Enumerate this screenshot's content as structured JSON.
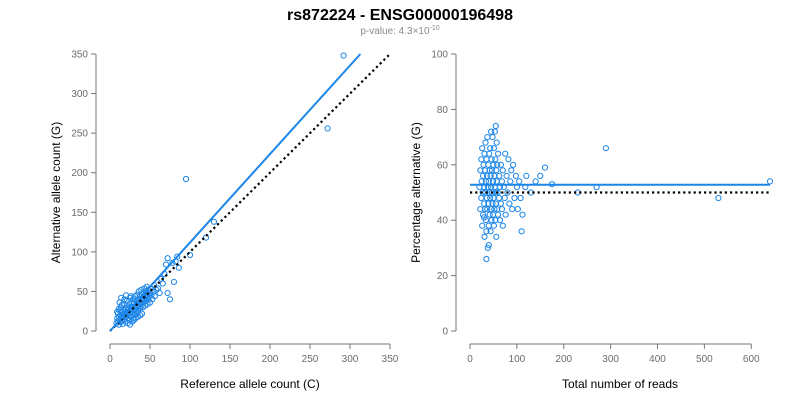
{
  "figure": {
    "title": "rs872224 - ENSG00000196498",
    "subtitle_prefix": "p-value: 4.3×10",
    "subtitle_exponent": "-10"
  },
  "colors": {
    "points": "#1c86e8",
    "fit_line": "#1c86e8",
    "reference_line": "#000000"
  },
  "chart_data": [
    {
      "type": "scatter",
      "name": "left-panel",
      "title": "",
      "xlabel": "Reference allele count (C)",
      "ylabel": "Alternative allele count (G)",
      "xlim": [
        0,
        350
      ],
      "ylim": [
        0,
        350
      ],
      "xticks": [
        0,
        50,
        100,
        150,
        200,
        250,
        300,
        350
      ],
      "yticks": [
        0,
        50,
        100,
        150,
        200,
        250,
        300,
        350
      ],
      "grid": false,
      "fit_line": {
        "x": [
          0,
          313
        ],
        "y": [
          0,
          350
        ]
      },
      "reference_line": {
        "x": [
          0,
          350
        ],
        "y": [
          0,
          350
        ]
      },
      "points": [
        [
          8,
          10
        ],
        [
          9,
          16
        ],
        [
          10,
          12
        ],
        [
          10,
          22
        ],
        [
          11,
          8
        ],
        [
          11,
          18
        ],
        [
          12,
          14
        ],
        [
          12,
          26
        ],
        [
          13,
          11
        ],
        [
          13,
          20
        ],
        [
          14,
          16
        ],
        [
          14,
          30
        ],
        [
          15,
          13
        ],
        [
          15,
          24
        ],
        [
          16,
          18
        ],
        [
          16,
          9
        ],
        [
          17,
          22
        ],
        [
          17,
          34
        ],
        [
          18,
          15
        ],
        [
          18,
          26
        ],
        [
          19,
          20
        ],
        [
          19,
          12
        ],
        [
          20,
          28
        ],
        [
          20,
          18
        ],
        [
          21,
          24
        ],
        [
          21,
          38
        ],
        [
          22,
          16
        ],
        [
          22,
          30
        ],
        [
          23,
          22
        ],
        [
          23,
          27
        ],
        [
          24,
          34
        ],
        [
          24,
          14
        ],
        [
          25,
          20
        ],
        [
          25,
          42
        ],
        [
          26,
          28
        ],
        [
          26,
          18
        ],
        [
          27,
          24
        ],
        [
          27,
          36
        ],
        [
          28,
          30
        ],
        [
          28,
          22
        ],
        [
          29,
          16
        ],
        [
          29,
          40
        ],
        [
          30,
          26
        ],
        [
          30,
          34
        ],
        [
          31,
          20
        ],
        [
          31,
          44
        ],
        [
          32,
          28
        ],
        [
          32,
          24
        ],
        [
          33,
          38
        ],
        [
          33,
          30
        ],
        [
          34,
          22
        ],
        [
          34,
          46
        ],
        [
          35,
          32
        ],
        [
          35,
          26
        ],
        [
          36,
          40
        ],
        [
          36,
          50
        ],
        [
          37,
          30
        ],
        [
          37,
          36
        ],
        [
          38,
          44
        ],
        [
          38,
          28
        ],
        [
          39,
          34
        ],
        [
          39,
          52
        ],
        [
          40,
          38
        ],
        [
          40,
          46
        ],
        [
          41,
          30
        ],
        [
          41,
          42
        ],
        [
          42,
          48
        ],
        [
          42,
          36
        ],
        [
          43,
          40
        ],
        [
          43,
          54
        ],
        [
          44,
          44
        ],
        [
          44,
          32
        ],
        [
          45,
          50
        ],
        [
          45,
          38
        ],
        [
          46,
          42
        ],
        [
          46,
          56
        ],
        [
          47,
          46
        ],
        [
          47,
          34
        ],
        [
          48,
          52
        ],
        [
          48,
          40
        ],
        [
          49,
          44
        ],
        [
          50,
          48
        ],
        [
          50,
          36
        ],
        [
          51,
          54
        ],
        [
          52,
          46
        ],
        [
          53,
          40
        ],
        [
          54,
          50
        ],
        [
          55,
          58
        ],
        [
          56,
          44
        ],
        [
          58,
          52
        ],
        [
          15,
          33
        ],
        [
          18,
          40
        ],
        [
          20,
          45
        ],
        [
          22,
          10
        ],
        [
          25,
          8
        ],
        [
          28,
          12
        ],
        [
          30,
          14
        ],
        [
          32,
          16
        ],
        [
          35,
          18
        ],
        [
          38,
          20
        ],
        [
          40,
          22
        ],
        [
          14,
          42
        ],
        [
          26,
          44
        ],
        [
          11,
          28
        ],
        [
          9,
          24
        ],
        [
          12,
          36
        ],
        [
          60,
          54
        ],
        [
          62,
          48
        ],
        [
          64,
          66
        ],
        [
          66,
          60
        ],
        [
          68,
          72
        ],
        [
          70,
          84
        ],
        [
          72,
          92
        ],
        [
          72,
          48
        ],
        [
          75,
          40
        ],
        [
          78,
          86
        ],
        [
          80,
          62
        ],
        [
          82,
          88
        ],
        [
          84,
          94
        ],
        [
          86,
          80
        ],
        [
          95,
          192
        ],
        [
          120,
          118
        ],
        [
          130,
          138
        ],
        [
          100,
          96
        ],
        [
          272,
          256
        ],
        [
          292,
          348
        ],
        [
          18,
          22
        ],
        [
          22,
          26
        ],
        [
          26,
          31
        ],
        [
          30,
          36
        ]
      ]
    },
    {
      "type": "scatter",
      "name": "right-panel",
      "title": "",
      "xlabel": "Total number of reads",
      "ylabel": "Percentage alternative (G)",
      "xlim": [
        0,
        640
      ],
      "ylim": [
        0,
        100
      ],
      "xticks": [
        0,
        100,
        200,
        300,
        400,
        500,
        600
      ],
      "yticks": [
        0,
        20,
        40,
        60,
        80,
        100
      ],
      "grid": false,
      "fit_line": {
        "x": [
          0,
          640
        ],
        "y": [
          52.8,
          52.8
        ]
      },
      "reference_line": {
        "x": [
          0,
          640
        ],
        "y": [
          50,
          50
        ]
      },
      "points": [
        [
          20,
          52
        ],
        [
          22,
          58
        ],
        [
          22,
          44
        ],
        [
          24,
          48
        ],
        [
          24,
          62
        ],
        [
          25,
          54
        ],
        [
          26,
          38
        ],
        [
          26,
          66
        ],
        [
          27,
          50
        ],
        [
          28,
          56
        ],
        [
          28,
          42
        ],
        [
          29,
          60
        ],
        [
          30,
          46
        ],
        [
          30,
          52
        ],
        [
          31,
          64
        ],
        [
          31,
          34
        ],
        [
          32,
          58
        ],
        [
          32,
          44
        ],
        [
          33,
          50
        ],
        [
          33,
          68
        ],
        [
          34,
          40
        ],
        [
          34,
          54
        ],
        [
          35,
          62
        ],
        [
          35,
          36
        ],
        [
          36,
          48
        ],
        [
          36,
          56
        ],
        [
          37,
          44
        ],
        [
          37,
          70
        ],
        [
          38,
          52
        ],
        [
          38,
          30
        ],
        [
          39,
          60
        ],
        [
          39,
          46
        ],
        [
          40,
          54
        ],
        [
          40,
          38
        ],
        [
          41,
          64
        ],
        [
          41,
          50
        ],
        [
          42,
          42
        ],
        [
          42,
          58
        ],
        [
          43,
          48
        ],
        [
          43,
          66
        ],
        [
          44,
          36
        ],
        [
          44,
          56
        ],
        [
          45,
          52
        ],
        [
          45,
          44
        ],
        [
          46,
          62
        ],
        [
          46,
          40
        ],
        [
          47,
          50
        ],
        [
          47,
          58
        ],
        [
          48,
          46
        ],
        [
          48,
          70
        ],
        [
          49,
          54
        ],
        [
          49,
          42
        ],
        [
          50,
          60
        ],
        [
          50,
          48
        ],
        [
          51,
          38
        ],
        [
          51,
          66
        ],
        [
          52,
          56
        ],
        [
          52,
          44
        ],
        [
          53,
          52
        ],
        [
          53,
          72
        ],
        [
          54,
          40
        ],
        [
          54,
          62
        ],
        [
          55,
          50
        ],
        [
          55,
          46
        ],
        [
          56,
          58
        ],
        [
          56,
          34
        ],
        [
          57,
          54
        ],
        [
          57,
          68
        ],
        [
          58,
          44
        ],
        [
          58,
          60
        ],
        [
          59,
          50
        ],
        [
          60,
          64
        ],
        [
          60,
          42
        ],
        [
          62,
          56
        ],
        [
          62,
          48
        ],
        [
          64,
          52
        ],
        [
          64,
          40
        ],
        [
          66,
          60
        ],
        [
          66,
          46
        ],
        [
          68,
          54
        ],
        [
          68,
          44
        ],
        [
          70,
          58
        ],
        [
          70,
          38
        ],
        [
          72,
          52
        ],
        [
          74,
          48
        ],
        [
          75,
          64
        ],
        [
          76,
          42
        ],
        [
          78,
          56
        ],
        [
          80,
          50
        ],
        [
          82,
          62
        ],
        [
          84,
          46
        ],
        [
          86,
          54
        ],
        [
          88,
          58
        ],
        [
          90,
          44
        ],
        [
          92,
          60
        ],
        [
          95,
          48
        ],
        [
          98,
          56
        ],
        [
          100,
          52
        ],
        [
          102,
          44
        ],
        [
          105,
          54
        ],
        [
          108,
          48
        ],
        [
          110,
          36
        ],
        [
          112,
          42
        ],
        [
          118,
          52
        ],
        [
          120,
          56
        ],
        [
          130,
          50
        ],
        [
          140,
          54
        ],
        [
          150,
          56
        ],
        [
          160,
          59
        ],
        [
          175,
          53
        ],
        [
          230,
          50
        ],
        [
          270,
          52
        ],
        [
          290,
          66
        ],
        [
          530,
          48
        ],
        [
          640,
          54
        ],
        [
          40,
          31
        ],
        [
          45,
          72
        ],
        [
          55,
          74
        ],
        [
          35,
          26
        ],
        [
          30,
          41
        ]
      ]
    }
  ]
}
